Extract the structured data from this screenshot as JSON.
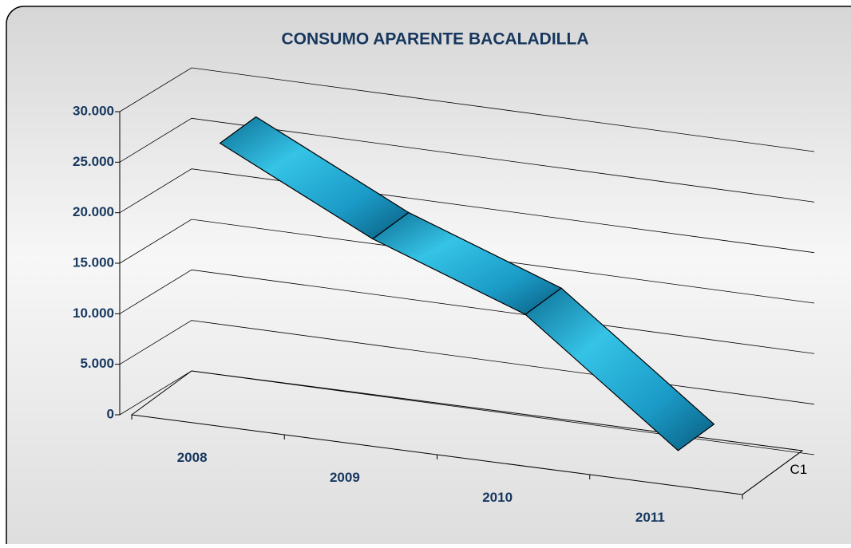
{
  "chart_data": {
    "type": "line3d",
    "title": "CONSUMO APARENTE BACALADILLA",
    "categories": [
      "2008",
      "2009",
      "2010",
      "2011"
    ],
    "series": [
      {
        "name": "C1",
        "color": "#1fa3cc",
        "values": [
          27000,
          19500,
          14000,
          2500
        ]
      }
    ],
    "ylim": [
      0,
      30000
    ],
    "yticks": [
      {
        "value": 0,
        "label": "0"
      },
      {
        "value": 5000,
        "label": "5.000"
      },
      {
        "value": 10000,
        "label": "10.000"
      },
      {
        "value": 15000,
        "label": "15.000"
      },
      {
        "value": 20000,
        "label": "20.000"
      },
      {
        "value": 25000,
        "label": "25.000"
      },
      {
        "value": 30000,
        "label": "30.000"
      }
    ],
    "grid": true
  }
}
